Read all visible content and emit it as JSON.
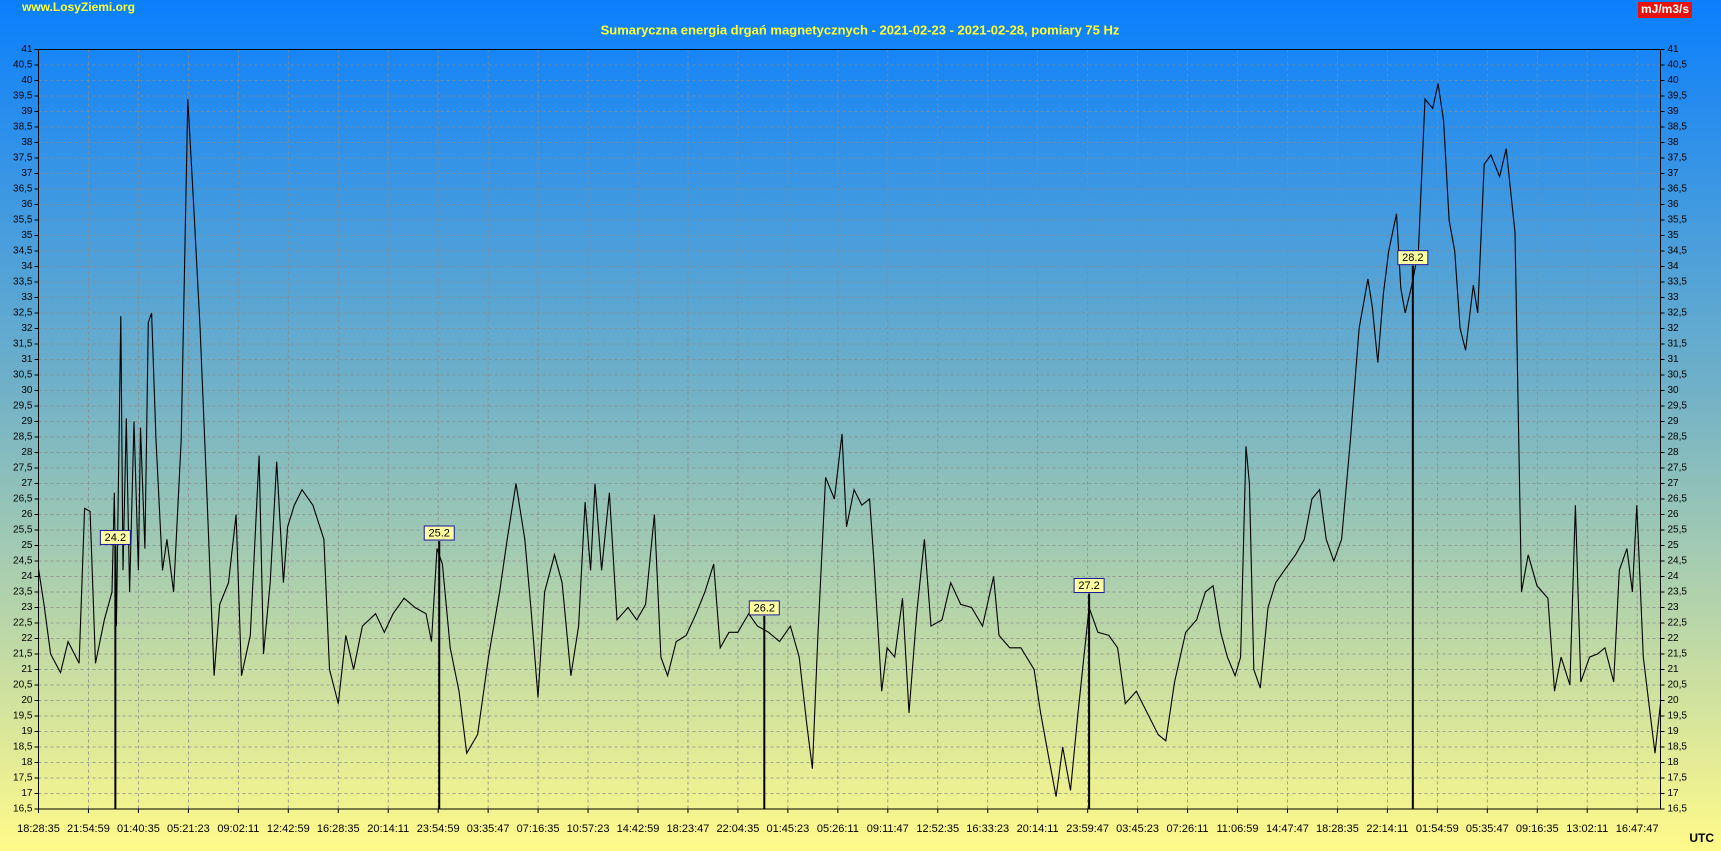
{
  "chart_data": {
    "type": "line",
    "title": "Sumaryczna energia drgań magnetycznych - 2021-02-23 - 2021-02-28, pomiary 75 Hz",
    "source": "www.LosyZiemi.org",
    "y_label": "mJ/m3/s",
    "x_label": "UTC",
    "color": "#000000",
    "grid": true,
    "xlim": [
      0,
      121.75
    ],
    "xticks": [
      {
        "value": 0,
        "label": "18:28:35"
      },
      {
        "value": 3.75,
        "label": "21:54:59"
      },
      {
        "value": 7.5,
        "label": "01:40:35"
      },
      {
        "value": 11.25,
        "label": "05:21:23"
      },
      {
        "value": 15,
        "label": "09:02:11"
      },
      {
        "value": 18.75,
        "label": "12:42:59"
      },
      {
        "value": 22.5,
        "label": "16:28:35"
      },
      {
        "value": 26.25,
        "label": "20:14:11"
      },
      {
        "value": 30,
        "label": "23:54:59"
      },
      {
        "value": 33.75,
        "label": "03:35:47"
      },
      {
        "value": 37.5,
        "label": "07:16:35"
      },
      {
        "value": 41.25,
        "label": "10:57:23"
      },
      {
        "value": 45,
        "label": "14:42:59"
      },
      {
        "value": 48.75,
        "label": "18:23:47"
      },
      {
        "value": 52.5,
        "label": "22:04:35"
      },
      {
        "value": 56.25,
        "label": "01:45:23"
      },
      {
        "value": 60,
        "label": "05:26:11"
      },
      {
        "value": 63.75,
        "label": "09:11:47"
      },
      {
        "value": 67.5,
        "label": "12:52:35"
      },
      {
        "value": 71.25,
        "label": "16:33:23"
      },
      {
        "value": 75,
        "label": "20:14:11"
      },
      {
        "value": 78.75,
        "label": "23:59:47"
      },
      {
        "value": 82.5,
        "label": "03:45:23"
      },
      {
        "value": 86.25,
        "label": "07:26:11"
      },
      {
        "value": 90,
        "label": "11:06:59"
      },
      {
        "value": 93.75,
        "label": "14:47:47"
      },
      {
        "value": 97.5,
        "label": "18:28:35"
      },
      {
        "value": 101.25,
        "label": "22:14:11"
      },
      {
        "value": 105,
        "label": "01:54:59"
      },
      {
        "value": 108.75,
        "label": "05:35:47"
      },
      {
        "value": 112.5,
        "label": "09:16:35"
      },
      {
        "value": 116.25,
        "label": "13:02:11"
      },
      {
        "value": 120,
        "label": "16:47:47"
      }
    ],
    "ylim": [
      16.5,
      41
    ],
    "yticks": [
      {
        "value": 16.5,
        "label": "16,5"
      },
      17,
      {
        "value": 17.5,
        "label": "17,5"
      },
      18,
      {
        "value": 18.5,
        "label": "18,5"
      },
      19,
      {
        "value": 19.5,
        "label": "19,5"
      },
      20,
      {
        "value": 20.5,
        "label": "20,5"
      },
      21,
      {
        "value": 21.5,
        "label": "21,5"
      },
      22,
      {
        "value": 22.5,
        "label": "22,5"
      },
      23,
      {
        "value": 23.5,
        "label": "23,5"
      },
      24,
      {
        "value": 24.5,
        "label": "24,5"
      },
      25,
      {
        "value": 25.5,
        "label": "25,5"
      },
      26,
      {
        "value": 26.5,
        "label": "26,5"
      },
      27,
      {
        "value": 27.5,
        "label": "27,5"
      },
      28,
      {
        "value": 28.5,
        "label": "28,5"
      },
      29,
      {
        "value": 29.5,
        "label": "29,5"
      },
      30,
      {
        "value": 30.5,
        "label": "30,5"
      },
      31,
      {
        "value": 31.5,
        "label": "31,5"
      },
      32,
      {
        "value": 32.5,
        "label": "32,5"
      },
      33,
      {
        "value": 33.5,
        "label": "33,5"
      },
      34,
      {
        "value": 34.5,
        "label": "34,5"
      },
      35,
      {
        "value": 35.5,
        "label": "35,5"
      },
      36,
      {
        "value": 36.5,
        "label": "36,5"
      },
      37,
      {
        "value": 37.5,
        "label": "37,5"
      },
      38,
      {
        "value": 38.5,
        "label": "38,5"
      },
      39,
      {
        "value": 39.5,
        "label": "39,5"
      },
      40,
      {
        "value": 40.5,
        "label": "40,5"
      },
      41
    ],
    "day_markers": [
      {
        "x": 5.77,
        "label": "24.2"
      },
      {
        "x": 30.08,
        "label": "25.2"
      },
      {
        "x": 54.48,
        "label": "26.2"
      },
      {
        "x": 78.86,
        "label": "27.2"
      },
      {
        "x": 103.16,
        "label": "28.2"
      }
    ],
    "x": [
      0,
      0.41,
      0.91,
      1.65,
      2.22,
      3.05,
      3.46,
      3.87,
      4.28,
      4.94,
      5.52,
      5.69,
      5.85,
      6.18,
      6.34,
      6.59,
      6.84,
      7.17,
      7.5,
      7.66,
      7.99,
      8.24,
      8.49,
      8.82,
      9.31,
      9.64,
      10.14,
      10.71,
      11.21,
      11.62,
      12.13,
      12.54,
      13.18,
      13.6,
      14.26,
      14.83,
      15.24,
      15.9,
      16.56,
      16.89,
      17.39,
      17.88,
      18.38,
      18.7,
      19.2,
      19.78,
      20.6,
      21.42,
      21.84,
      22.5,
      23.07,
      23.65,
      24.31,
      25.3,
      25.96,
      26.62,
      27.44,
      28.26,
      29.09,
      29.5,
      29.91,
      30.32,
      30.9,
      31.56,
      32.14,
      32.96,
      33.78,
      34.61,
      35.18,
      35.84,
      36.5,
      37,
      37.49,
      37.99,
      38.73,
      39.3,
      39.96,
      40.54,
      41.03,
      41.44,
      41.77,
      42.27,
      42.85,
      43.42,
      44.25,
      44.91,
      45.57,
      46.23,
      46.72,
      47.22,
      47.87,
      48.62,
      49.36,
      50.02,
      50.68,
      51.17,
      51.83,
      52.49,
      53.31,
      53.97,
      54.8,
      55.62,
      56.44,
      57.1,
      57.68,
      58.09,
      58.5,
      59.08,
      59.74,
      60.31,
      60.65,
      61.22,
      61.8,
      62.38,
      62.71,
      63.29,
      63.7,
      64.27,
      64.85,
      65.34,
      65.92,
      66.5,
      66.99,
      67.82,
      68.47,
      69.22,
      70.04,
      70.86,
      71.69,
      72.1,
      72.91,
      73.74,
      74.73,
      75.22,
      75.81,
      76.38,
      76.88,
      77.46,
      78.03,
      78.86,
      79.52,
      80.34,
      81,
      81.58,
      82.4,
      83.22,
      84.05,
      84.62,
      85.28,
      86.11,
      86.93,
      87.59,
      88.17,
      88.74,
      89.24,
      89.82,
      90.23,
      90.64,
      90.89,
      91.22,
      91.71,
      92.29,
      92.87,
      93.52,
      94.35,
      95.01,
      95.58,
      96.16,
      96.66,
      97.23,
      97.81,
      98.47,
      99.13,
      99.79,
      100.12,
      100.53,
      100.94,
      101.35,
      101.93,
      102.26,
      102.59,
      103.08,
      103.58,
      104.07,
      104.65,
      105.06,
      105.47,
      105.88,
      106.3,
      106.71,
      107.12,
      107.7,
      108.03,
      108.52,
      109.02,
      109.67,
      110.17,
      110.83,
      111.32,
      111.82,
      112.48,
      113.3,
      113.79,
      114.29,
      114.95,
      115.36,
      115.77,
      116.43,
      117.01,
      117.58,
      118.24,
      118.66,
      119.23,
      119.64,
      119.97,
      120.46,
      120.88,
      121.34,
      121.75
    ],
    "values": [
      24.25,
      23.1,
      21.5,
      20.9,
      21.9,
      21.2,
      26.2,
      26.1,
      21.2,
      22.6,
      23.5,
      26.7,
      22.4,
      32.4,
      24.2,
      29.1,
      23.5,
      29,
      24.2,
      28.8,
      24.9,
      32.2,
      32.5,
      28.4,
      24.2,
      25.2,
      23.5,
      28.4,
      39.4,
      36.2,
      32,
      27.7,
      20.8,
      23.1,
      23.8,
      26,
      20.8,
      22.1,
      27.9,
      21.5,
      23.8,
      27.7,
      23.8,
      25.6,
      26.3,
      26.8,
      26.3,
      25.2,
      21,
      19.9,
      22.1,
      21,
      22.4,
      22.8,
      22.2,
      22.8,
      23.3,
      23,
      22.8,
      21.9,
      24.9,
      24.4,
      21.7,
      20.3,
      18.3,
      18.9,
      21.4,
      23.5,
      25.2,
      27,
      25.2,
      22.8,
      20.1,
      23.5,
      24.7,
      23.8,
      20.8,
      22.4,
      26.4,
      24.2,
      27,
      24.2,
      26.7,
      22.6,
      23,
      22.6,
      23.1,
      26,
      21.4,
      20.8,
      21.9,
      22.1,
      22.8,
      23.5,
      24.4,
      21.7,
      22.2,
      22.2,
      22.8,
      22.4,
      22.2,
      21.9,
      22.4,
      21.4,
      19.2,
      17.8,
      22.1,
      27.2,
      26.5,
      28.6,
      25.6,
      26.8,
      26.3,
      26.5,
      24.5,
      20.3,
      21.7,
      21.4,
      23.3,
      19.6,
      22.8,
      25.2,
      22.4,
      22.6,
      23.8,
      23.1,
      23,
      22.4,
      24,
      22.1,
      21.7,
      21.7,
      21,
      19.6,
      18.2,
      16.9,
      18.5,
      17.1,
      19.6,
      23,
      22.2,
      22.1,
      21.7,
      19.9,
      20.3,
      19.6,
      18.9,
      18.7,
      20.6,
      22.2,
      22.6,
      23.5,
      23.7,
      22.2,
      21.4,
      20.8,
      21.4,
      28.2,
      27,
      21,
      20.4,
      23,
      23.8,
      24.2,
      24.7,
      25.2,
      26.5,
      26.8,
      25.2,
      24.5,
      25.2,
      28.4,
      32,
      33.6,
      32.7,
      30.9,
      33.1,
      34.5,
      35.7,
      33.3,
      32.5,
      33.4,
      34.5,
      39.4,
      39.1,
      39.9,
      38.7,
      35.5,
      34.5,
      32,
      31.3,
      33.4,
      32.5,
      37.3,
      37.6,
      36.9,
      37.8,
      35.1,
      23.5,
      24.7,
      23.7,
      23.3,
      20.3,
      21.4,
      20.5,
      26.3,
      20.6,
      21.4,
      21.5,
      21.7,
      20.6,
      24.2,
      24.9,
      23.5,
      26.3,
      21.4,
      19.9,
      18.3,
      19.9
    ]
  }
}
